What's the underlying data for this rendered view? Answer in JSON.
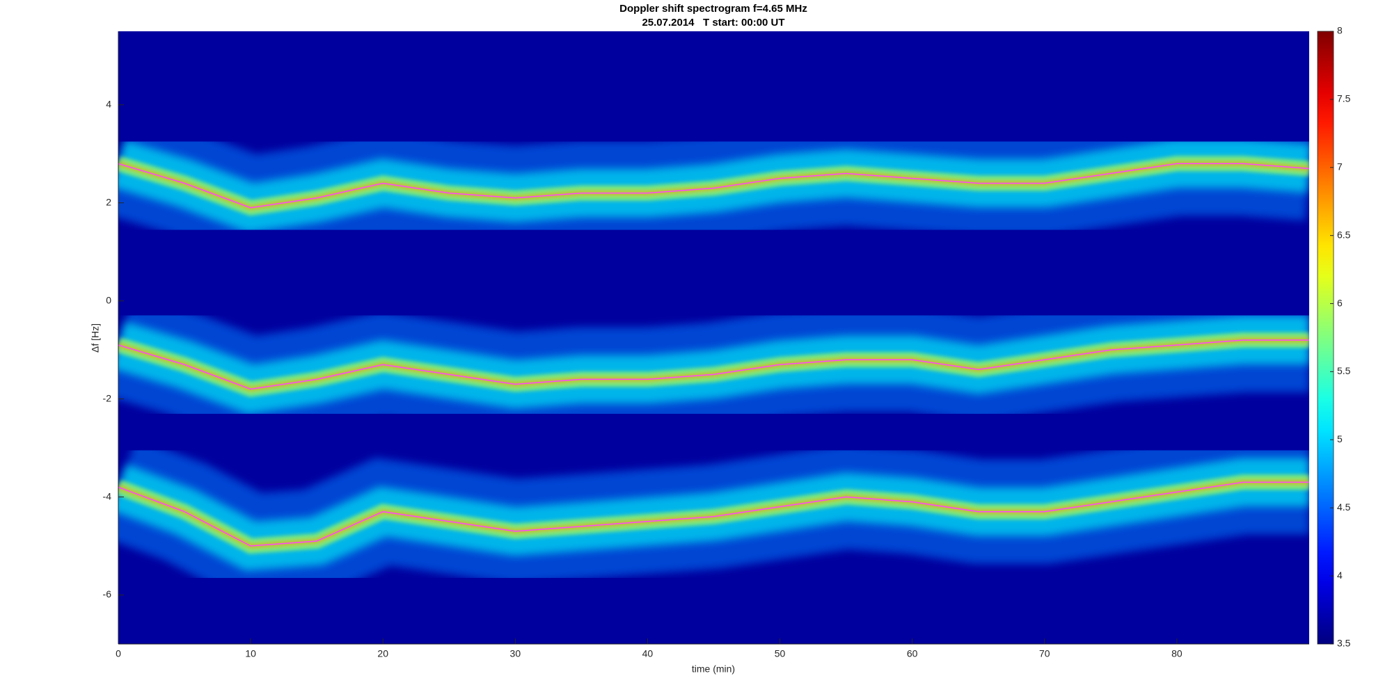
{
  "chart_data": {
    "type": "spectrogram",
    "title": "Doppler shift spectrogram f=4.65 MHz",
    "subtitle": "25.07.2014   T start: 00:00 UT",
    "xlabel": "time (min)",
    "ylabel": "Δf [Hz]",
    "colormap": "jet",
    "x": [
      0,
      5,
      10,
      15,
      20,
      25,
      30,
      35,
      40,
      45,
      50,
      55,
      60,
      65,
      70,
      75,
      80,
      85,
      90
    ],
    "series": [
      {
        "color": "#ff44ff",
        "values": [
          2.8,
          2.4,
          1.9,
          2.1,
          2.4,
          2.2,
          2.1,
          2.2,
          2.2,
          2.3,
          2.5,
          2.6,
          2.5,
          2.4,
          2.4,
          2.6,
          2.8,
          2.8,
          2.7
        ]
      },
      {
        "color": "#ff44ff",
        "values": [
          -0.9,
          -1.3,
          -1.8,
          -1.6,
          -1.3,
          -1.5,
          -1.7,
          -1.6,
          -1.6,
          -1.5,
          -1.3,
          -1.2,
          -1.2,
          -1.4,
          -1.2,
          -1.0,
          -0.9,
          -0.8,
          -0.8
        ]
      },
      {
        "color": "#ff44ff",
        "values": [
          -3.8,
          -4.3,
          -5.0,
          -4.9,
          -4.3,
          -4.5,
          -4.7,
          -4.6,
          -4.5,
          -4.4,
          -4.2,
          -4.0,
          -4.1,
          -4.3,
          -4.3,
          -4.1,
          -3.9,
          -3.7,
          -3.7
        ]
      }
    ],
    "xlim": [
      0,
      90
    ],
    "xticks": [
      0,
      10,
      20,
      30,
      40,
      50,
      60,
      70,
      80
    ],
    "ylim": [
      -7,
      5.5
    ],
    "yticks": [
      -6,
      -4,
      -2,
      0,
      2,
      4
    ],
    "clim": [
      3.5,
      8
    ],
    "cticks": [
      3.5,
      4,
      4.5,
      5,
      5.5,
      6,
      6.5,
      7,
      7.5,
      8
    ]
  }
}
